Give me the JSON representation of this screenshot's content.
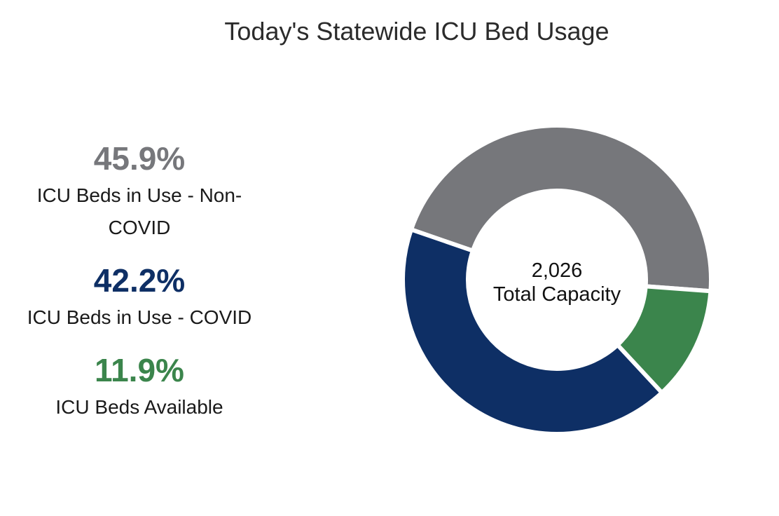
{
  "chart_data": {
    "type": "pie",
    "title": "Today's Statewide ICU Bed Usage",
    "center_value": "2,026",
    "center_label": "Total Capacity",
    "slices": [
      {
        "label": "ICU Beds in Use - Non-COVID",
        "value": 45.9,
        "display": "45.9%",
        "color": "#76777b"
      },
      {
        "label": "ICU Beds Available",
        "value": 11.9,
        "display": "11.9%",
        "color": "#3b854c"
      },
      {
        "label": "ICU Beds in Use - COVID",
        "value": 42.2,
        "display": "42.2%",
        "color": "#0e2f65"
      }
    ],
    "legend_order": [
      0,
      2,
      1
    ],
    "start_angle_deg": -71
  }
}
